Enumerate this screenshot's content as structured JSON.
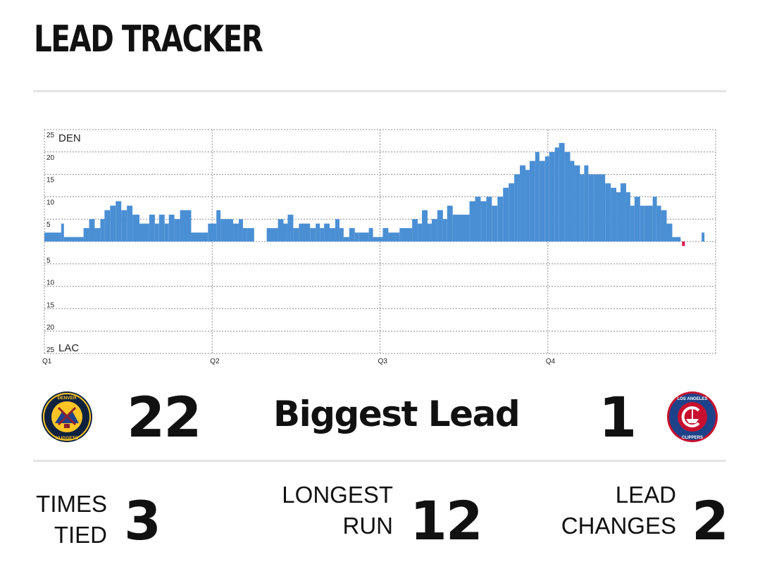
{
  "title": "LEAD TRACKER",
  "chart_data": {
    "type": "bar",
    "x_labels": [
      "Q1",
      "Q2",
      "Q3",
      "Q4"
    ],
    "y_tick_labels_top": [
      "25",
      "20",
      "15",
      "10",
      "5"
    ],
    "y_tick_labels_bottom": [
      "5",
      "10",
      "15",
      "20",
      "25"
    ],
    "top_team_label": "DEN",
    "bottom_team_label": "LAC",
    "ylim": [
      -25,
      25
    ],
    "xlim": [
      0,
      48
    ],
    "grid": true,
    "colors": {
      "den": "#4a8fd4",
      "lac": "#d5124b"
    },
    "segments": [
      [
        0.0,
        1.2,
        2
      ],
      [
        1.2,
        1.4,
        4
      ],
      [
        1.4,
        2.8,
        1
      ],
      [
        2.8,
        3.2,
        3
      ],
      [
        3.2,
        3.6,
        5
      ],
      [
        3.6,
        4.0,
        3
      ],
      [
        4.0,
        4.3,
        5
      ],
      [
        4.3,
        4.7,
        7
      ],
      [
        4.7,
        5.1,
        8
      ],
      [
        5.1,
        5.5,
        9
      ],
      [
        5.5,
        5.9,
        7
      ],
      [
        5.9,
        6.3,
        8
      ],
      [
        6.3,
        6.8,
        6
      ],
      [
        6.8,
        7.5,
        4
      ],
      [
        7.5,
        7.9,
        6
      ],
      [
        7.9,
        8.2,
        4
      ],
      [
        8.2,
        8.6,
        6
      ],
      [
        8.6,
        8.9,
        4
      ],
      [
        8.9,
        9.3,
        6
      ],
      [
        9.3,
        9.7,
        5
      ],
      [
        9.7,
        10.5,
        7
      ],
      [
        10.5,
        11.7,
        2
      ],
      [
        11.7,
        12.3,
        4
      ],
      [
        12.3,
        12.6,
        7
      ],
      [
        12.6,
        13.5,
        5
      ],
      [
        13.5,
        13.9,
        4
      ],
      [
        13.9,
        14.2,
        5
      ],
      [
        14.2,
        14.5,
        3
      ],
      [
        14.5,
        15.0,
        3
      ],
      [
        15.9,
        16.7,
        3
      ],
      [
        16.7,
        17.1,
        5
      ],
      [
        17.1,
        17.4,
        4
      ],
      [
        17.4,
        17.8,
        6
      ],
      [
        17.8,
        18.2,
        3
      ],
      [
        18.2,
        19.0,
        4
      ],
      [
        19.0,
        19.4,
        3
      ],
      [
        19.4,
        19.7,
        4
      ],
      [
        19.7,
        20.0,
        3
      ],
      [
        20.0,
        20.4,
        4
      ],
      [
        20.4,
        20.8,
        3
      ],
      [
        20.8,
        21.1,
        5
      ],
      [
        21.1,
        21.4,
        3
      ],
      [
        21.4,
        21.8,
        1
      ],
      [
        21.8,
        22.2,
        3
      ],
      [
        22.2,
        22.5,
        2
      ],
      [
        22.5,
        23.2,
        2
      ],
      [
        23.2,
        23.5,
        3
      ],
      [
        23.5,
        24.2,
        1
      ],
      [
        24.2,
        24.6,
        3
      ],
      [
        24.6,
        25.4,
        2
      ],
      [
        25.4,
        26.3,
        3
      ],
      [
        26.3,
        26.7,
        5
      ],
      [
        26.7,
        27.0,
        4
      ],
      [
        27.0,
        27.4,
        7
      ],
      [
        27.4,
        27.7,
        4
      ],
      [
        27.7,
        28.1,
        5
      ],
      [
        28.1,
        28.5,
        7
      ],
      [
        28.5,
        28.8,
        5
      ],
      [
        28.8,
        29.2,
        8
      ],
      [
        29.2,
        30.4,
        6
      ],
      [
        30.4,
        30.8,
        9
      ],
      [
        30.8,
        31.2,
        10
      ],
      [
        31.2,
        31.6,
        9
      ],
      [
        31.6,
        32.0,
        10
      ],
      [
        32.0,
        32.4,
        8
      ],
      [
        32.4,
        32.8,
        10
      ],
      [
        32.8,
        33.2,
        12
      ],
      [
        33.2,
        33.6,
        13
      ],
      [
        33.6,
        34.0,
        15
      ],
      [
        34.0,
        34.4,
        17
      ],
      [
        34.4,
        34.7,
        16
      ],
      [
        34.7,
        35.1,
        18
      ],
      [
        35.1,
        35.4,
        20
      ],
      [
        35.4,
        35.8,
        18
      ],
      [
        35.8,
        36.1,
        19
      ],
      [
        36.1,
        36.5,
        20
      ],
      [
        36.5,
        36.8,
        21
      ],
      [
        36.8,
        37.2,
        22
      ],
      [
        37.2,
        37.6,
        20
      ],
      [
        37.6,
        37.9,
        18
      ],
      [
        37.9,
        38.3,
        17
      ],
      [
        38.3,
        38.6,
        15
      ],
      [
        38.6,
        38.9,
        17
      ],
      [
        38.9,
        39.3,
        15
      ],
      [
        39.3,
        40.1,
        15
      ],
      [
        40.1,
        40.5,
        13
      ],
      [
        40.5,
        40.9,
        12
      ],
      [
        40.9,
        41.2,
        11
      ],
      [
        41.2,
        41.6,
        13
      ],
      [
        41.6,
        41.9,
        11
      ],
      [
        41.9,
        42.2,
        8
      ],
      [
        42.2,
        42.6,
        10
      ],
      [
        42.6,
        42.9,
        8
      ],
      [
        42.9,
        43.5,
        8
      ],
      [
        43.5,
        43.8,
        10
      ],
      [
        43.8,
        44.1,
        8
      ],
      [
        44.1,
        44.5,
        7
      ],
      [
        44.5,
        44.9,
        4
      ],
      [
        44.9,
        45.5,
        1
      ],
      [
        45.6,
        45.8,
        -1
      ],
      [
        46.5,
        47.0,
        0
      ],
      [
        47.0,
        47.2,
        2
      ]
    ]
  },
  "stats": {
    "den_biggest_lead": "22",
    "biggest_lead_label": "Biggest Lead",
    "lac_biggest_lead": "1",
    "times_tied_label_1": "TIMES",
    "times_tied_label_2": "TIED",
    "times_tied_value": "3",
    "longest_run_label_1": "LONGEST",
    "longest_run_label_2": "RUN",
    "longest_run_value": "12",
    "lead_changes_label_1": "LEAD",
    "lead_changes_label_2": "CHANGES",
    "lead_changes_value": "2"
  },
  "logos": {
    "den_text_top": "DENVER",
    "den_text_bottom": "NUGGETS",
    "lac_text_top": "LOS ANGELES",
    "lac_text_bottom": "CLIPPERS",
    "den_colors": {
      "ring": "#0e2240",
      "gold": "#fec524",
      "red": "#8b2131",
      "blue": "#1d428a"
    },
    "lac_colors": {
      "ring": "#1d428a",
      "red": "#c8102e",
      "white": "#ffffff"
    }
  }
}
